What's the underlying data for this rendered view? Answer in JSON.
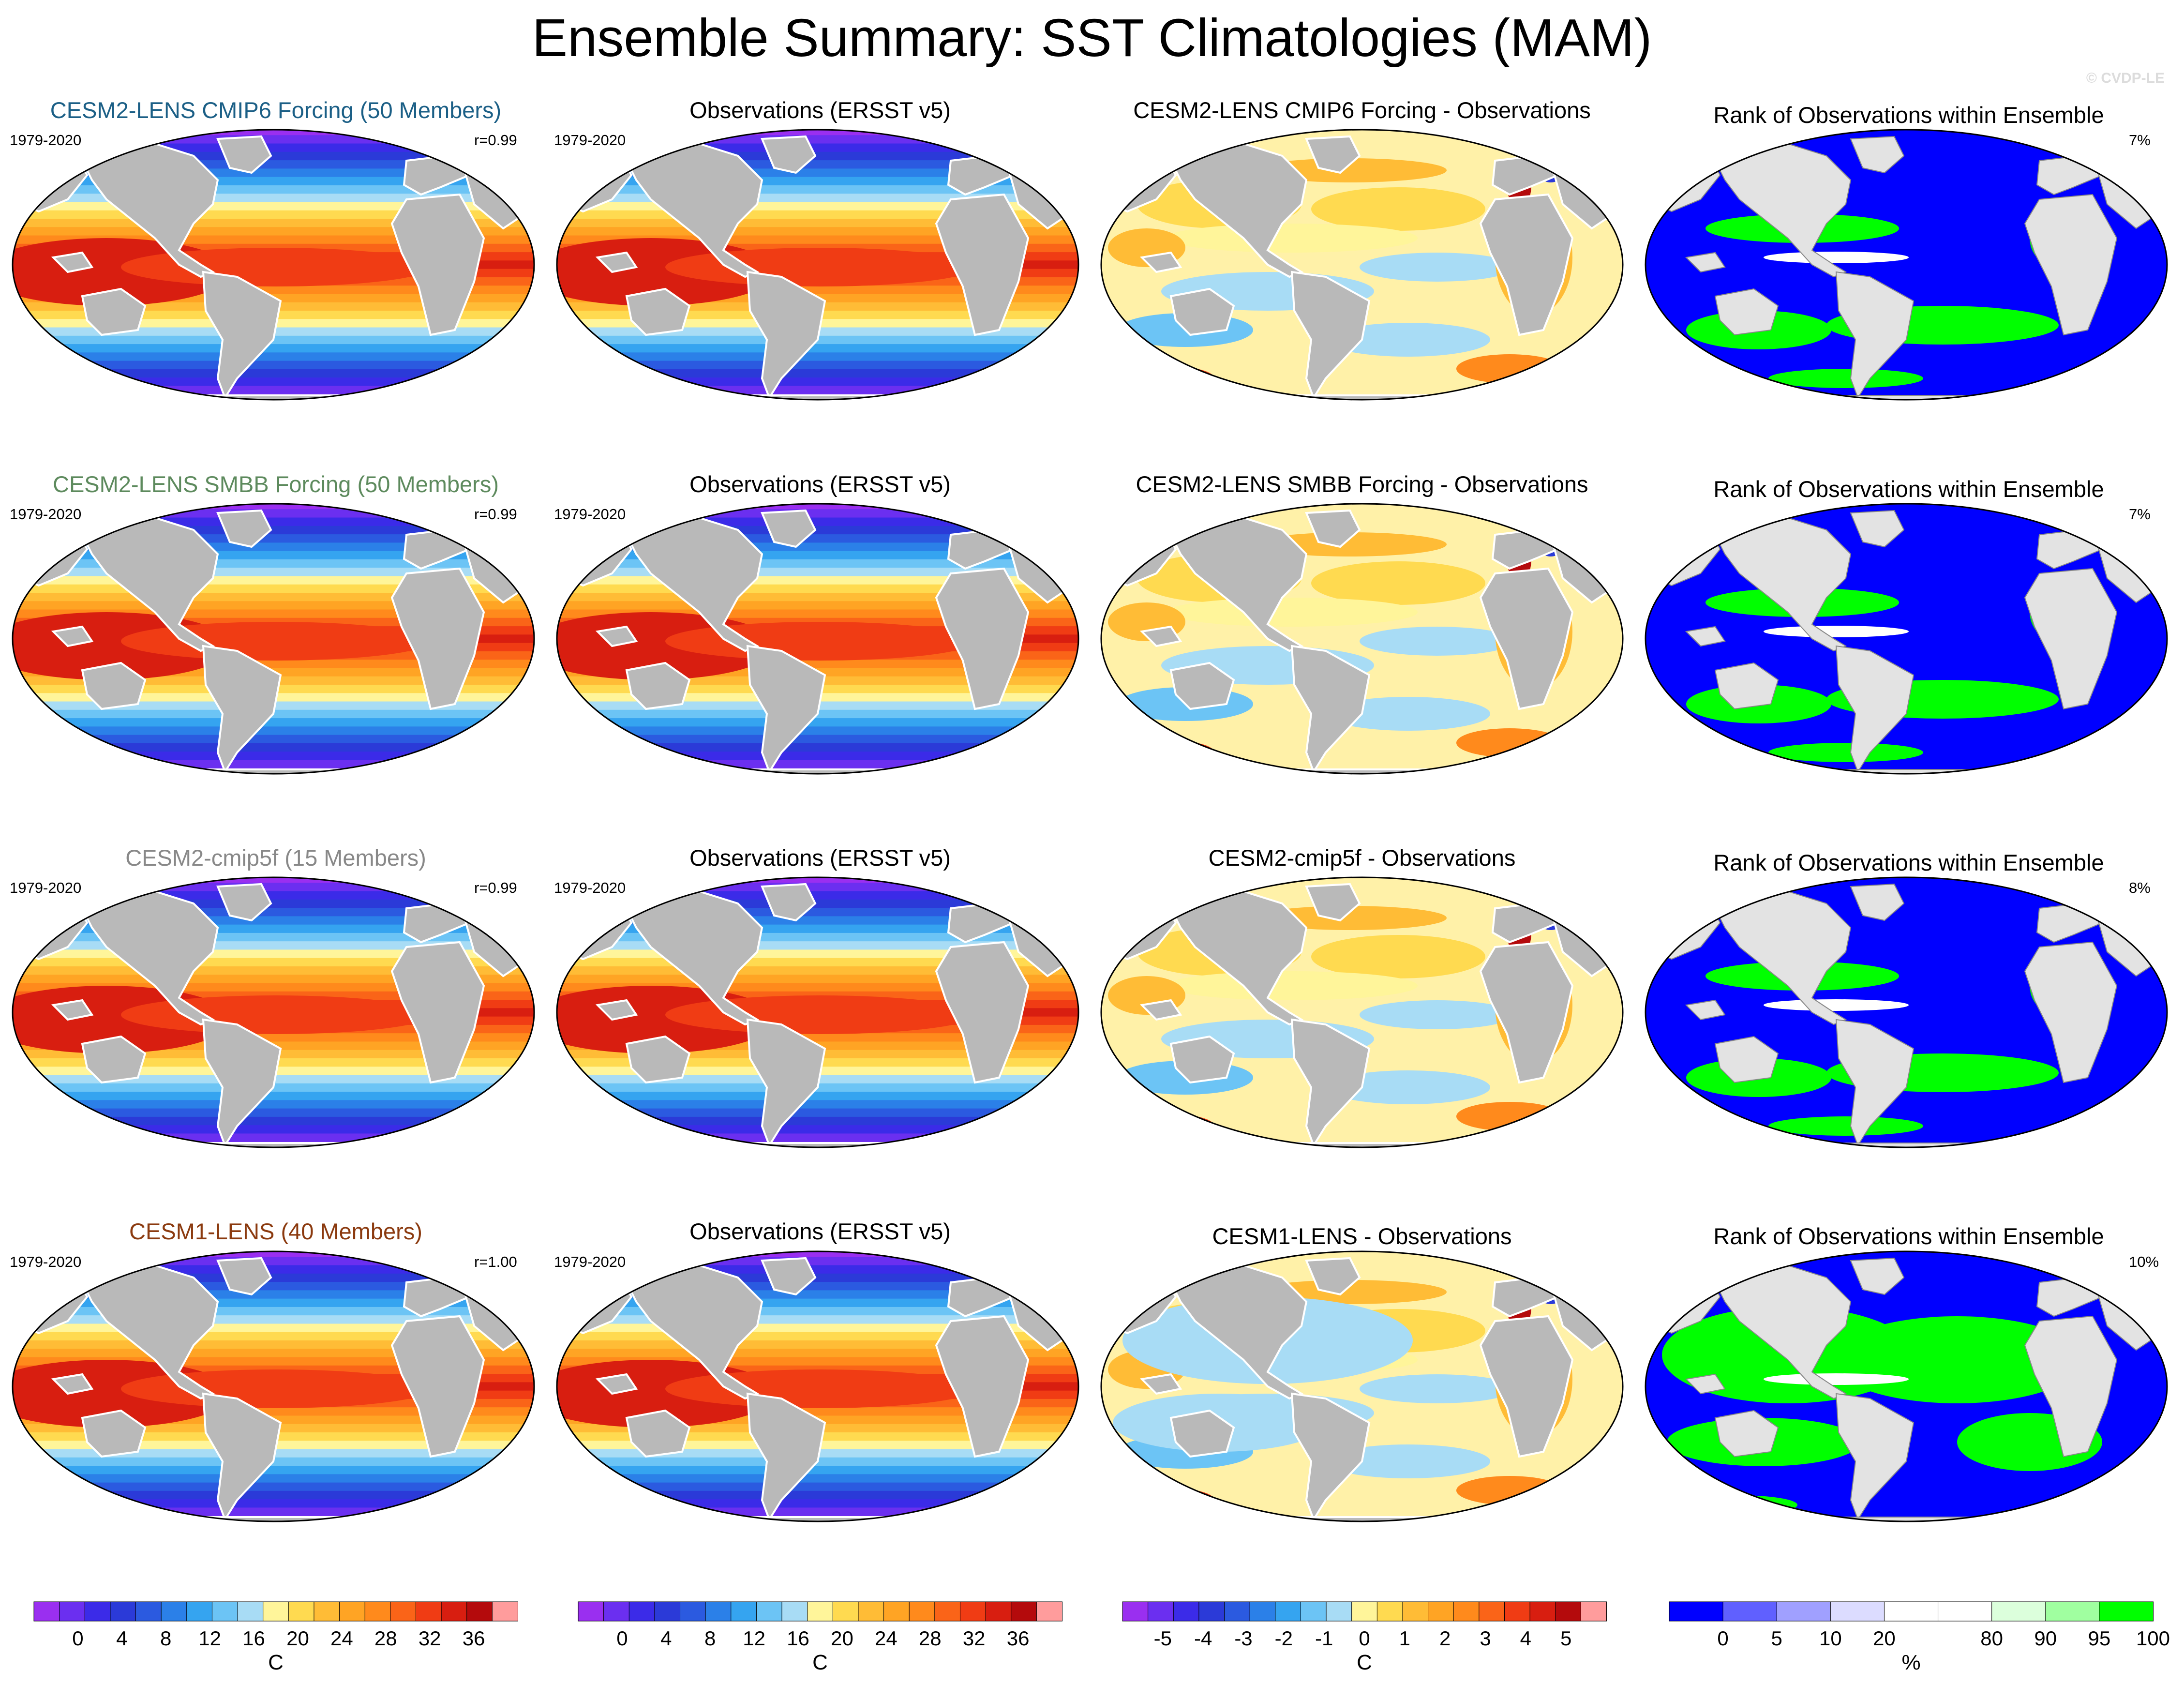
{
  "title": "Ensemble Summary: SST Climatologies (MAM)",
  "copyright": "© CVDP-LE",
  "period": "1979-2020",
  "rows": [
    {
      "model_title": "CESM2-LENS CMIP6 Forcing (50 Members)",
      "model_color": "#1b5f86",
      "r_label": "r=0.99",
      "obs_title": "Observations (ERSST v5)",
      "diff_title": "CESM2-LENS CMIP6 Forcing - Observations",
      "rank_title": "Rank of Observations within Ensemble",
      "rank_pct": "7%"
    },
    {
      "model_title": "CESM2-LENS SMBB Forcing (50 Members)",
      "model_color": "#5d8a5d",
      "r_label": "r=0.99",
      "obs_title": "Observations (ERSST v5)",
      "diff_title": "CESM2-LENS SMBB Forcing - Observations",
      "rank_title": "Rank of Observations within Ensemble",
      "rank_pct": "7%"
    },
    {
      "model_title": "CESM2-cmip5f (15 Members)",
      "model_color": "#888888",
      "r_label": "r=0.99",
      "obs_title": "Observations (ERSST v5)",
      "diff_title": "CESM2-cmip5f - Observations",
      "rank_title": "Rank of Observations within Ensemble",
      "rank_pct": "8%"
    },
    {
      "model_title": "CESM1-LENS (40 Members)",
      "model_color": "#8b3a0f",
      "r_label": "r=1.00",
      "obs_title": "Observations (ERSST v5)",
      "diff_title": "CESM1-LENS - Observations",
      "rank_title": "Rank of Observations within Ensemble",
      "rank_pct": "10%"
    }
  ],
  "colorbars": [
    {
      "unit": "C",
      "colors": [
        "#9a2ff0",
        "#6b2ff0",
        "#3b2be8",
        "#2b3ad8",
        "#2b5ae0",
        "#2b80e8",
        "#35a4f0",
        "#6cc4f5",
        "#a8dcf5",
        "#fff59a",
        "#ffda50",
        "#ffbc36",
        "#ffa424",
        "#ff8a1c",
        "#fa6418",
        "#f03c14",
        "#d81e10",
        "#b40a0c",
        "#ff9c9c"
      ],
      "labels": [
        "0",
        "4",
        "8",
        "12",
        "16",
        "20",
        "24",
        "28",
        "32",
        "36"
      ]
    },
    {
      "unit": "C",
      "colors": [
        "#9a2ff0",
        "#6b2ff0",
        "#3b2be8",
        "#2b3ad8",
        "#2b5ae0",
        "#2b80e8",
        "#35a4f0",
        "#6cc4f5",
        "#a8dcf5",
        "#fff59a",
        "#ffda50",
        "#ffbc36",
        "#ffa424",
        "#ff8a1c",
        "#fa6418",
        "#f03c14",
        "#d81e10",
        "#b40a0c",
        "#ff9c9c"
      ],
      "labels": [
        "0",
        "4",
        "8",
        "12",
        "16",
        "20",
        "24",
        "28",
        "32",
        "36"
      ]
    },
    {
      "unit": "C",
      "colors": [
        "#9a2ff0",
        "#6b2ff0",
        "#3b2be8",
        "#2b3ad8",
        "#2b5ae0",
        "#2b80e8",
        "#35a4f0",
        "#6cc4f5",
        "#a8dcf5",
        "#fff59a",
        "#ffda50",
        "#ffbc36",
        "#ffa424",
        "#ff8a1c",
        "#fa6418",
        "#f03c14",
        "#d81e10",
        "#b40a0c",
        "#ff9c9c"
      ],
      "labels": [
        "-5",
        "-4",
        "-3",
        "-2",
        "-1",
        "0",
        "1",
        "2",
        "3",
        "4",
        "5"
      ]
    },
    {
      "unit": "%",
      "colors": [
        "#0000ff",
        "#6060ff",
        "#a0a0ff",
        "#dcdcff",
        "#ffffff",
        "#ffffff",
        "#dcffdc",
        "#a0ffa0",
        "#00ff00"
      ],
      "labels": [
        "0",
        "5",
        "10",
        "20",
        "80",
        "90",
        "95",
        "100"
      ]
    }
  ],
  "map_palette": {
    "land": "#b9b9b9",
    "rank_land": "#e3e3e3",
    "coast": "#ffffff",
    "rank_coast": "#888888"
  }
}
